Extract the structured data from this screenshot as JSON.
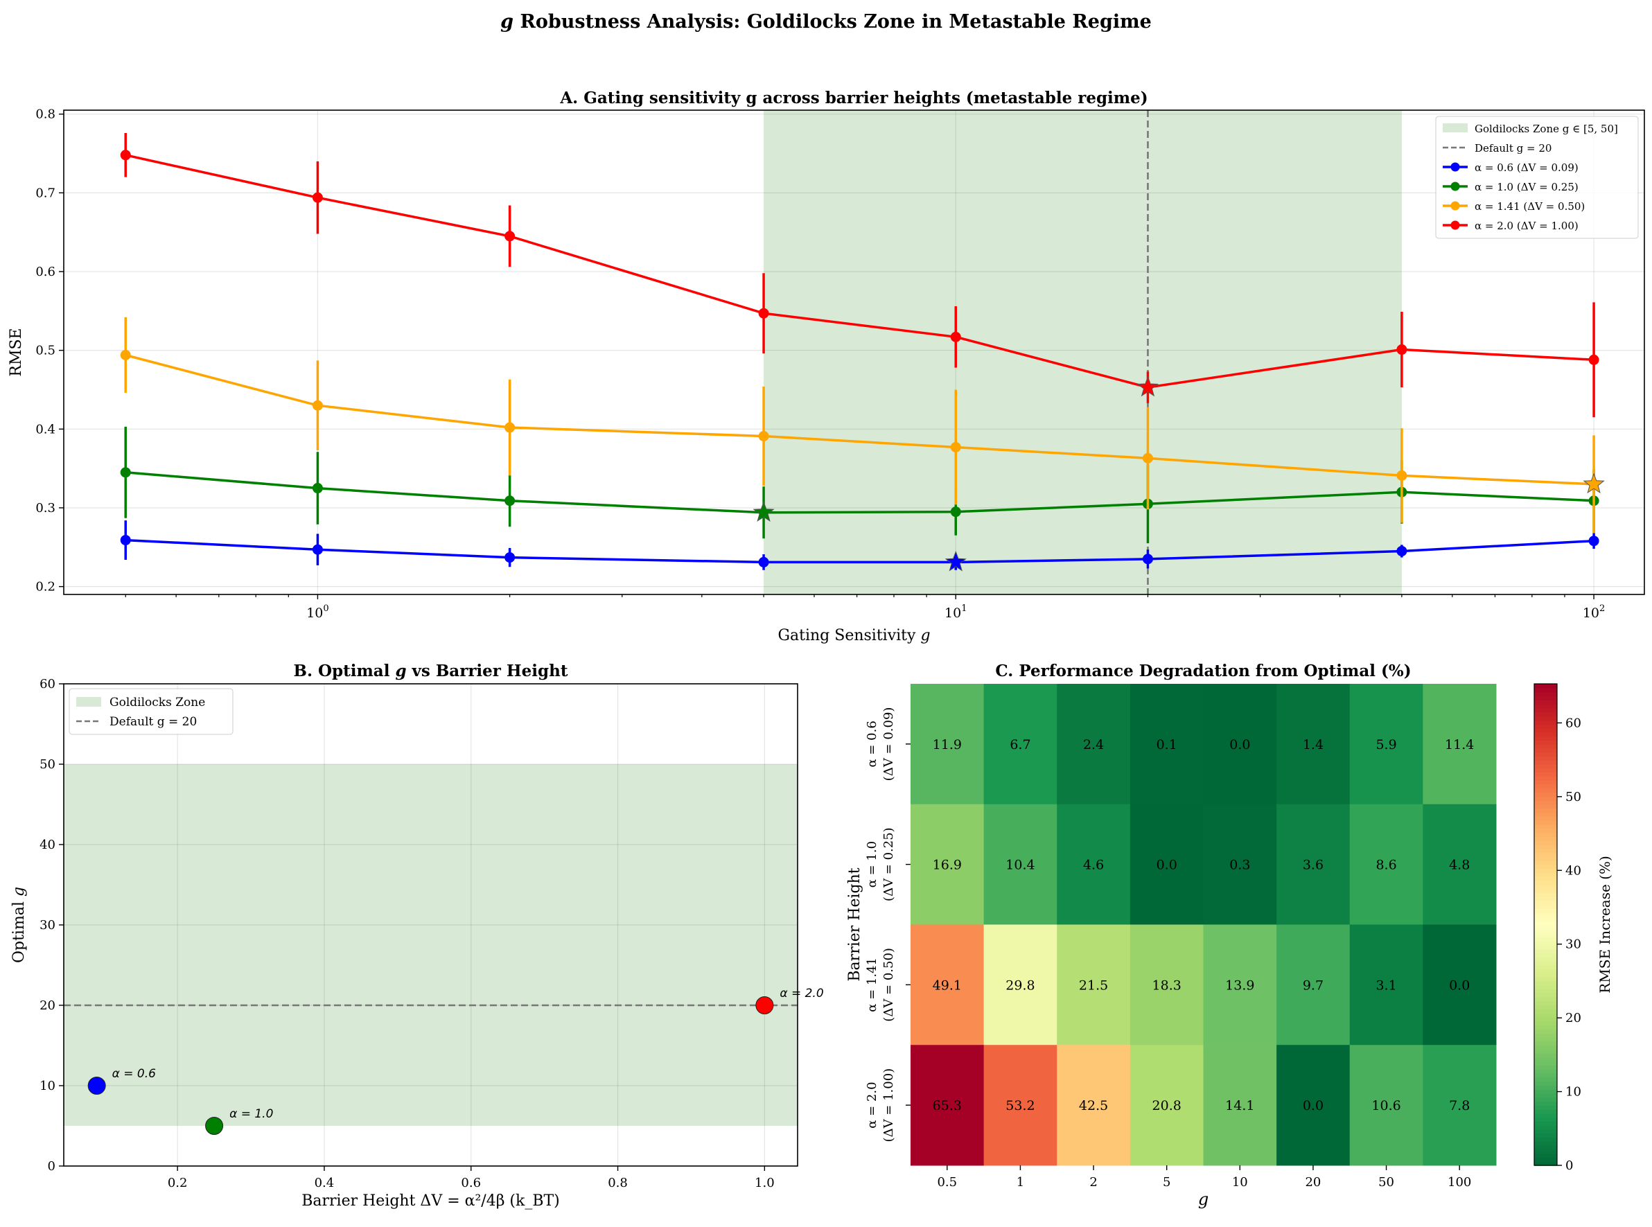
{
  "figure": {
    "suptitle_prefix": "g",
    "suptitle": " Robustness Analysis: Goldilocks Zone in Metastable Regime"
  },
  "chart_data": [
    {
      "panel": "A",
      "type": "line",
      "title": "A. Gating sensitivity g across barrier heights (metastable regime)",
      "xlabel_text": "Gating Sensitivity ",
      "xlabel_var": "g",
      "ylabel": "RMSE",
      "xscale": "log",
      "xlim": [
        0.4,
        120
      ],
      "ylim": [
        0.19,
        0.805
      ],
      "xticks": [
        1,
        10,
        100
      ],
      "xtick_labels": [
        {
          "base": "10",
          "exp": "0"
        },
        {
          "base": "10",
          "exp": "1"
        },
        {
          "base": "10",
          "exp": "2"
        }
      ],
      "yticks": [
        0.2,
        0.3,
        0.4,
        0.5,
        0.6,
        0.7,
        0.8
      ],
      "ytick_labels": [
        "0.2",
        "0.3",
        "0.4",
        "0.5",
        "0.6",
        "0.7",
        "0.8"
      ],
      "grid": true,
      "shaded_region": {
        "x0": 5,
        "x1": 50,
        "color": "#d8ead6"
      },
      "vline": {
        "x": 20,
        "style": "dashed",
        "color": "#777777"
      },
      "x": [
        0.5,
        1,
        2,
        5,
        10,
        20,
        50,
        100
      ],
      "series": [
        {
          "name": "α = 0.6 (ΔV = 0.09)",
          "color": "#0000ff",
          "values": [
            0.259,
            0.247,
            0.237,
            0.231,
            0.231,
            0.235,
            0.245,
            0.258
          ],
          "errors": [
            0.025,
            0.02,
            0.012,
            0.01,
            0.01,
            0.012,
            0.008,
            0.01
          ],
          "best_index": 4
        },
        {
          "name": "α = 1.0 (ΔV = 0.25)",
          "color": "#008000",
          "values": [
            0.345,
            0.325,
            0.309,
            0.294,
            0.295,
            0.305,
            0.32,
            0.309
          ],
          "errors": [
            0.058,
            0.046,
            0.033,
            0.033,
            0.03,
            0.05,
            0.04,
            0.04
          ],
          "best_index": 3
        },
        {
          "name": "α = 1.41 (ΔV = 0.50)",
          "color": "#ffa500",
          "values": [
            0.494,
            0.43,
            0.402,
            0.391,
            0.377,
            0.363,
            0.341,
            0.33
          ],
          "errors": [
            0.048,
            0.057,
            0.061,
            0.063,
            0.073,
            0.065,
            0.06,
            0.062
          ],
          "best_index": 7
        },
        {
          "name": "α = 2.0 (ΔV = 1.00)",
          "color": "#ff0000",
          "values": [
            0.748,
            0.694,
            0.645,
            0.547,
            0.517,
            0.453,
            0.501,
            0.488
          ],
          "errors": [
            0.028,
            0.046,
            0.039,
            0.051,
            0.039,
            0.02,
            0.048,
            0.073
          ],
          "best_index": 5
        }
      ],
      "legend": {
        "position": "upper right",
        "zone_label": "Goldilocks Zone g ∈ [5, 50]",
        "default_label": "Default g = 20"
      }
    },
    {
      "panel": "B",
      "type": "scatter",
      "title_prefix": "B. Optimal ",
      "title_var": "g",
      "title_suffix": " vs Barrier Height",
      "xlabel": "Barrier Height ΔV = α²/4β (k_BT)",
      "ylabel_text": "Optimal ",
      "ylabel_var": "g",
      "xlim": [
        0.045,
        1.045
      ],
      "ylim": [
        0,
        60
      ],
      "xticks": [
        0.2,
        0.4,
        0.6,
        0.8,
        1.0
      ],
      "xtick_labels": [
        "0.2",
        "0.4",
        "0.6",
        "0.8",
        "1.0"
      ],
      "yticks": [
        0,
        10,
        20,
        30,
        40,
        50,
        60
      ],
      "ytick_labels": [
        "0",
        "10",
        "20",
        "30",
        "40",
        "50",
        "60"
      ],
      "grid": true,
      "shaded_region": {
        "y0": 5,
        "y1": 50,
        "color": "#d8ead6"
      },
      "hline": {
        "y": 20,
        "style": "dashed",
        "color": "#777777"
      },
      "points": [
        {
          "x": 0.09,
          "y": 10,
          "color": "#0000ff",
          "label": "α = 0.6"
        },
        {
          "x": 0.25,
          "y": 5,
          "color": "#008000",
          "label": "α = 1.0"
        },
        {
          "x": 1.0,
          "y": 20,
          "color": "#ff0000",
          "label": "α = 2.0"
        }
      ],
      "legend": {
        "position": "upper left",
        "zone_label": "Goldilocks Zone",
        "default_label": "Default g = 20"
      }
    },
    {
      "panel": "C",
      "type": "heatmap",
      "title": "C. Performance Degradation from Optimal (%)",
      "xlabel": "g",
      "ylabel": "Barrier Height",
      "columns": [
        "0.5",
        "1",
        "2",
        "5",
        "10",
        "20",
        "50",
        "100"
      ],
      "rows": [
        {
          "line1": "α = 0.6",
          "line2": "(ΔV = 0.09)"
        },
        {
          "line1": "α = 1.0",
          "line2": "(ΔV = 0.25)"
        },
        {
          "line1": "α = 1.41",
          "line2": "(ΔV = 0.50)"
        },
        {
          "line1": "α = 2.0",
          "line2": "(ΔV = 1.00)"
        }
      ],
      "values": [
        [
          11.9,
          6.7,
          2.4,
          0.1,
          0.0,
          1.4,
          5.9,
          11.4
        ],
        [
          16.9,
          10.4,
          4.6,
          0.0,
          0.3,
          3.6,
          8.6,
          4.8
        ],
        [
          49.1,
          29.8,
          21.5,
          18.3,
          13.9,
          9.7,
          3.1,
          0.0
        ],
        [
          65.3,
          53.2,
          42.5,
          20.8,
          14.1,
          0.0,
          10.6,
          7.8
        ]
      ],
      "value_labels": [
        [
          "11.9",
          "6.7",
          "2.4",
          "0.1",
          "0.0",
          "1.4",
          "5.9",
          "11.4"
        ],
        [
          "16.9",
          "10.4",
          "4.6",
          "0.0",
          "0.3",
          "3.6",
          "8.6",
          "4.8"
        ],
        [
          "49.1",
          "29.8",
          "21.5",
          "18.3",
          "13.9",
          "9.7",
          "3.1",
          "0.0"
        ],
        [
          "65.3",
          "53.2",
          "42.5",
          "20.8",
          "14.1",
          "0.0",
          "10.6",
          "7.8"
        ]
      ],
      "colormap": "RdYlGn_r",
      "vmin": 0,
      "vmax": 65.3,
      "colorbar_label": "RMSE Increase (%)",
      "colorbar_ticks": [
        0,
        10,
        20,
        30,
        40,
        50,
        60
      ],
      "colorbar_tick_labels": [
        "0",
        "10",
        "20",
        "30",
        "40",
        "50",
        "60"
      ]
    }
  ]
}
